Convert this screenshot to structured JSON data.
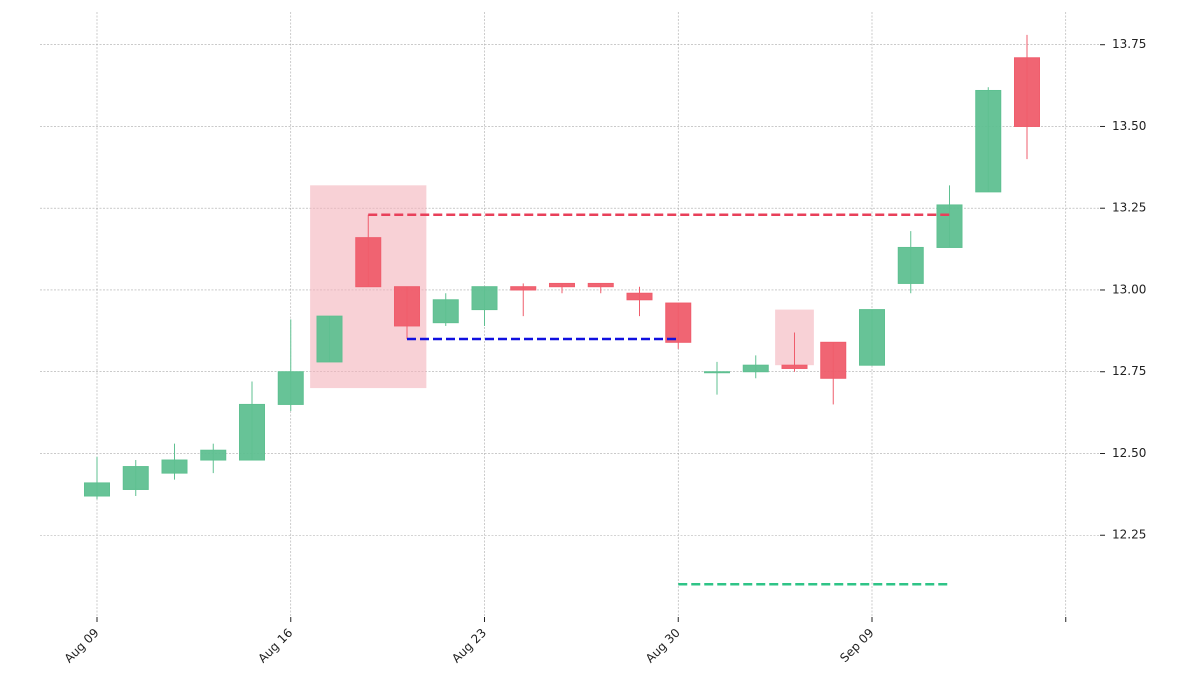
{
  "chart_data": {
    "type": "candlestick",
    "categories": [
      "Aug 09",
      null,
      null,
      null,
      null,
      "Aug 16",
      null,
      null,
      null,
      null,
      "Aug 23",
      null,
      null,
      null,
      null,
      "Aug 30",
      null,
      null,
      null,
      null,
      "Sep 09",
      null,
      null,
      null,
      null
    ],
    "open": [
      12.37,
      12.39,
      12.44,
      12.48,
      12.48,
      12.65,
      12.78,
      13.16,
      13.01,
      12.9,
      12.94,
      13.01,
      13.02,
      13.02,
      12.99,
      12.96,
      12.75,
      12.75,
      12.77,
      12.84,
      12.77,
      13.02,
      13.13,
      13.3,
      13.71
    ],
    "high": [
      12.49,
      12.48,
      12.53,
      12.53,
      12.72,
      12.91,
      12.92,
      13.23,
      13.01,
      12.99,
      13.01,
      13.02,
      13.02,
      13.02,
      13.01,
      12.96,
      12.78,
      12.8,
      12.87,
      12.84,
      12.94,
      13.18,
      13.32,
      13.62,
      13.78
    ],
    "low": [
      12.36,
      12.37,
      12.42,
      12.44,
      12.48,
      12.63,
      12.78,
      13.01,
      12.85,
      12.89,
      12.89,
      12.92,
      12.99,
      12.99,
      12.92,
      12.82,
      12.68,
      12.73,
      12.75,
      12.65,
      12.77,
      12.99,
      13.13,
      13.3,
      13.4
    ],
    "close": [
      12.41,
      12.46,
      12.48,
      12.51,
      12.65,
      12.75,
      12.92,
      13.01,
      12.89,
      12.97,
      13.01,
      13.0,
      13.01,
      13.01,
      12.97,
      12.84,
      12.75,
      12.77,
      12.76,
      12.73,
      12.94,
      13.13,
      13.26,
      13.61,
      13.5
    ],
    "up_color": "#5fc091",
    "down_color": "#ef5d6c",
    "ylim": [
      12.0,
      13.85
    ],
    "yticks": [
      12.25,
      {
        "value": 12.5,
        "label": "12.50"
      },
      12.75,
      {
        "value": 13.0,
        "label": "13.00"
      },
      13.25,
      {
        "value": 13.5,
        "label": "13.50"
      },
      13.75
    ],
    "grid": true,
    "highlights": [
      {
        "start": 6,
        "end": 8,
        "low": 12.7,
        "high": 13.32,
        "color": "#f4b3ba"
      },
      {
        "start": 18,
        "end": 18,
        "low": 12.77,
        "high": 12.94,
        "color": "#f4b3ba"
      }
    ],
    "levels": [
      {
        "start": 7,
        "end": 22,
        "value": 13.23,
        "color": "#e8405a"
      },
      {
        "start": 8,
        "end": 15,
        "value": 12.85,
        "color": "#1010e0"
      },
      {
        "start": 15,
        "end": 22,
        "value": 12.1,
        "color": "#2fc487"
      }
    ]
  }
}
